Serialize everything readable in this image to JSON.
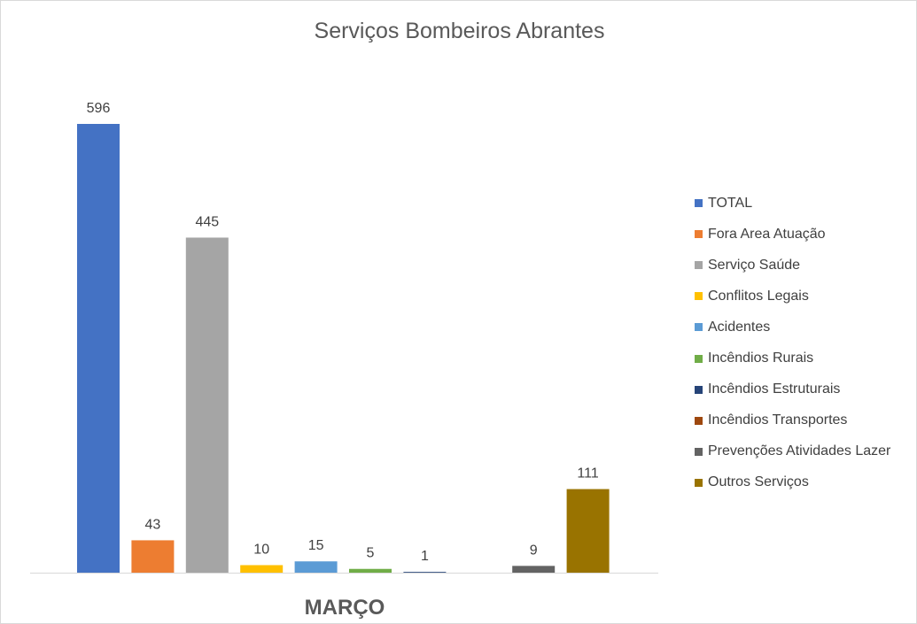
{
  "chart_data": {
    "type": "bar",
    "title": "Serviços Bombeiros Abrantes",
    "categories": [
      "MARÇO"
    ],
    "series": [
      {
        "name": "TOTAL",
        "values": [
          596
        ],
        "color": "#4472C4"
      },
      {
        "name": "Fora Area Atuação",
        "values": [
          43
        ],
        "color": "#ED7D31"
      },
      {
        "name": "Serviço Saúde",
        "values": [
          445
        ],
        "color": "#A5A5A5"
      },
      {
        "name": "Conflitos Legais",
        "values": [
          10
        ],
        "color": "#FFC000"
      },
      {
        "name": "Acidentes",
        "values": [
          15
        ],
        "color": "#5B9BD5"
      },
      {
        "name": "Incêndios Rurais",
        "values": [
          5
        ],
        "color": "#70AD47"
      },
      {
        "name": "Incêndios Estruturais",
        "values": [
          1
        ],
        "color": "#264478"
      },
      {
        "name": "Incêndios Transportes",
        "values": [
          0
        ],
        "color": "#9E480E"
      },
      {
        "name": "Prevenções Atividades Lazer",
        "values": [
          9
        ],
        "color": "#636363"
      },
      {
        "name": "Outros Serviços",
        "values": [
          111
        ],
        "color": "#997300"
      }
    ],
    "data_labels": [
      "596",
      "43",
      "445",
      "10",
      "15",
      "5",
      "1",
      "",
      "9",
      "111"
    ],
    "ylim": [
      0,
      596
    ],
    "grid": false,
    "legend_position": "right"
  }
}
